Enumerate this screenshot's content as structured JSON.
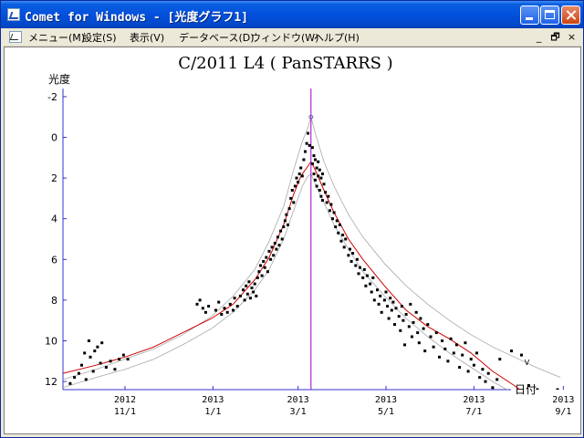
{
  "window": {
    "title": "Comet for Windows - [光度グラフ1]",
    "accent": "#0350dd"
  },
  "menu": {
    "items": [
      "メニュー(M)",
      "設定(S)",
      "表示(V)",
      "データベース(D)",
      "ウィンドウ(W)",
      "ヘルプ(H)"
    ],
    "mdi_buttons": [
      "_",
      "🗗",
      "×"
    ]
  },
  "chart_data": {
    "type": "scatter",
    "title": "C/2011 L4 ( PanSTARRS )",
    "ylabel": "光度",
    "xlabel": "日付",
    "y_inverted": true,
    "ylim": [
      -2.4,
      12.4
    ],
    "y_ticks": [
      -2,
      0,
      2,
      4,
      6,
      8,
      10,
      12
    ],
    "x_ticks": [
      {
        "year": "2012",
        "date": "11/1",
        "day": -120
      },
      {
        "year": "2013",
        "date": "1/1",
        "day": -59
      },
      {
        "year": "2013",
        "date": "3/1",
        "day": 0
      },
      {
        "year": "2013",
        "date": "5/1",
        "day": 61
      },
      {
        "year": "2013",
        "date": "7/1",
        "day": 122
      },
      {
        "year": "2013",
        "date": "9/1",
        "day": 184
      }
    ],
    "xlim": [
      -163,
      192
    ],
    "perihelion_day": 9,
    "peak_magnitude": -1.0,
    "v_label": "V",
    "v_label_pos": [
      157,
      11.2
    ],
    "series": [
      {
        "color": "#cc0000"
      },
      {
        "color": "#a8a8a8"
      },
      {
        "color": "#a8a8a8"
      },
      {
        "color": "#9900cc"
      }
    ],
    "curve_left": [
      [
        -163,
        11.6
      ],
      [
        -140,
        11.2
      ],
      [
        -120,
        10.8
      ],
      [
        -100,
        10.3
      ],
      [
        -80,
        9.6
      ],
      [
        -60,
        8.9
      ],
      [
        -45,
        8.2
      ],
      [
        -30,
        7.0
      ],
      [
        -20,
        5.9
      ],
      [
        -10,
        4.3
      ],
      [
        -3,
        2.8
      ],
      [
        2,
        1.9
      ],
      [
        6,
        1.5
      ],
      [
        8,
        1.3
      ],
      [
        9,
        1.2
      ]
    ],
    "curve_right": [
      [
        9,
        1.2
      ],
      [
        12,
        1.6
      ],
      [
        18,
        2.6
      ],
      [
        25,
        3.7
      ],
      [
        35,
        5.0
      ],
      [
        45,
        6.0
      ],
      [
        60,
        7.3
      ],
      [
        75,
        8.5
      ],
      [
        90,
        9.3
      ],
      [
        105,
        9.9
      ],
      [
        120,
        10.6
      ],
      [
        135,
        11.5
      ],
      [
        150,
        12.2
      ],
      [
        160,
        12.7
      ]
    ],
    "envelope_upper_left": [
      [
        -163,
        11.9
      ],
      [
        -140,
        11.4
      ],
      [
        -120,
        10.9
      ],
      [
        -100,
        10.4
      ],
      [
        -80,
        9.7
      ],
      [
        -60,
        8.8
      ],
      [
        -45,
        7.8
      ],
      [
        -30,
        6.5
      ],
      [
        -20,
        5.1
      ],
      [
        -10,
        3.4
      ],
      [
        -3,
        1.6
      ],
      [
        3,
        0.2
      ],
      [
        7,
        -0.5
      ],
      [
        9,
        -1.0
      ]
    ],
    "envelope_upper_right": [
      [
        9,
        -1.0
      ],
      [
        12,
        -0.2
      ],
      [
        18,
        1.2
      ],
      [
        25,
        2.4
      ],
      [
        35,
        3.8
      ],
      [
        45,
        4.9
      ],
      [
        60,
        6.2
      ],
      [
        75,
        7.3
      ],
      [
        90,
        8.2
      ],
      [
        105,
        9.0
      ],
      [
        120,
        9.7
      ],
      [
        135,
        10.3
      ],
      [
        150,
        10.8
      ],
      [
        165,
        11.3
      ],
      [
        182,
        11.8
      ]
    ],
    "envelope_lower_left": [
      [
        -163,
        12.3
      ],
      [
        -140,
        11.8
      ],
      [
        -120,
        11.4
      ],
      [
        -100,
        10.9
      ],
      [
        -80,
        10.2
      ],
      [
        -60,
        9.4
      ],
      [
        -45,
        8.6
      ],
      [
        -30,
        7.5
      ],
      [
        -20,
        6.5
      ],
      [
        -10,
        5.0
      ],
      [
        -3,
        3.6
      ],
      [
        3,
        2.4
      ],
      [
        7,
        1.9
      ],
      [
        9,
        1.8
      ]
    ],
    "envelope_lower_right": [
      [
        9,
        1.8
      ],
      [
        12,
        2.3
      ],
      [
        18,
        3.2
      ],
      [
        25,
        4.3
      ],
      [
        35,
        5.5
      ],
      [
        45,
        6.6
      ],
      [
        60,
        7.8
      ],
      [
        75,
        8.9
      ],
      [
        90,
        9.8
      ],
      [
        105,
        10.6
      ],
      [
        120,
        11.3
      ],
      [
        135,
        12.0
      ],
      [
        150,
        12.6
      ]
    ],
    "points": [
      [
        -158,
        12.1
      ],
      [
        -155,
        11.8
      ],
      [
        -152,
        11.6
      ],
      [
        -150,
        11.2
      ],
      [
        -148,
        10.6
      ],
      [
        -147,
        11.9
      ],
      [
        -145,
        10.0
      ],
      [
        -144,
        10.8
      ],
      [
        -142,
        11.5
      ],
      [
        -141,
        10.5
      ],
      [
        -139,
        10.3
      ],
      [
        -137,
        11.1
      ],
      [
        -136,
        10.1
      ],
      [
        -133,
        11.3
      ],
      [
        -130,
        11.0
      ],
      [
        -127,
        11.4
      ],
      [
        -124,
        10.9
      ],
      [
        -121,
        10.7
      ],
      [
        -118,
        10.9
      ],
      [
        -70,
        8.2
      ],
      [
        -68,
        8.0
      ],
      [
        -66,
        8.4
      ],
      [
        -64,
        8.6
      ],
      [
        -62,
        8.3
      ],
      [
        -57,
        8.5
      ],
      [
        -55,
        8.1
      ],
      [
        -53,
        8.7
      ],
      [
        -51,
        8.4
      ],
      [
        -49,
        8.6
      ],
      [
        -47,
        8.2
      ],
      [
        -45,
        8.5
      ],
      [
        -44,
        7.9
      ],
      [
        -42,
        8.3
      ],
      [
        -40,
        7.8
      ],
      [
        -38,
        7.5
      ],
      [
        -37,
        8.0
      ],
      [
        -36,
        7.3
      ],
      [
        -35,
        7.7
      ],
      [
        -34,
        7.1
      ],
      [
        -33,
        7.9
      ],
      [
        -32,
        7.4
      ],
      [
        -31,
        7.6
      ],
      [
        -30,
        7.2
      ],
      [
        -29,
        7.8
      ],
      [
        -28,
        6.9
      ],
      [
        -27,
        6.6
      ],
      [
        -26,
        6.3
      ],
      [
        -25,
        6.8
      ],
      [
        -24,
        6.1
      ],
      [
        -23,
        6.4
      ],
      [
        -22,
        5.9
      ],
      [
        -21,
        6.6
      ],
      [
        -20,
        5.6
      ],
      [
        -19,
        6.0
      ],
      [
        -18,
        5.4
      ],
      [
        -17,
        5.8
      ],
      [
        -16,
        5.2
      ],
      [
        -15,
        5.5
      ],
      [
        -14,
        4.9
      ],
      [
        -13,
        5.3
      ],
      [
        -12,
        4.6
      ],
      [
        -11,
        5.0
      ],
      [
        -10,
        4.4
      ],
      [
        -9,
        4.1
      ],
      [
        -8,
        3.8
      ],
      [
        -7,
        4.3
      ],
      [
        -6,
        3.5
      ],
      [
        -5,
        3.0
      ],
      [
        -4,
        2.6
      ],
      [
        -3,
        3.2
      ],
      [
        -2,
        2.4
      ],
      [
        -1,
        2.0
      ],
      [
        0,
        2.2
      ],
      [
        1,
        1.8
      ],
      [
        2,
        1.5
      ],
      [
        3,
        1.9
      ],
      [
        4,
        1.1
      ],
      [
        5,
        0.7
      ],
      [
        6,
        0.3
      ],
      [
        7,
        -0.2
      ],
      [
        8,
        0.4
      ],
      [
        10,
        0.5
      ],
      [
        10,
        1.3
      ],
      [
        11,
        0.9
      ],
      [
        11,
        1.8
      ],
      [
        12,
        1.1
      ],
      [
        12,
        2.1
      ],
      [
        13,
        1.5
      ],
      [
        13,
        2.4
      ],
      [
        14,
        1.2
      ],
      [
        14,
        1.9
      ],
      [
        15,
        1.6
      ],
      [
        15,
        2.6
      ],
      [
        16,
        2.0
      ],
      [
        16,
        2.9
      ],
      [
        17,
        1.8
      ],
      [
        17,
        3.1
      ],
      [
        18,
        2.3
      ],
      [
        19,
        2.7
      ],
      [
        20,
        3.2
      ],
      [
        21,
        2.9
      ],
      [
        22,
        3.6
      ],
      [
        23,
        3.3
      ],
      [
        24,
        4.0
      ],
      [
        25,
        3.7
      ],
      [
        26,
        4.4
      ],
      [
        27,
        4.1
      ],
      [
        28,
        4.7
      ],
      [
        29,
        4.3
      ],
      [
        30,
        5.1
      ],
      [
        31,
        4.8
      ],
      [
        32,
        5.4
      ],
      [
        33,
        5.0
      ],
      [
        35,
        5.8
      ],
      [
        36,
        5.5
      ],
      [
        37,
        6.1
      ],
      [
        38,
        5.7
      ],
      [
        40,
        6.3
      ],
      [
        41,
        6.0
      ],
      [
        42,
        6.7
      ],
      [
        43,
        6.4
      ],
      [
        45,
        6.9
      ],
      [
        46,
        6.5
      ],
      [
        47,
        7.3
      ],
      [
        48,
        6.8
      ],
      [
        50,
        7.2
      ],
      [
        51,
        7.6
      ],
      [
        52,
        6.9
      ],
      [
        53,
        8.0
      ],
      [
        55,
        7.5
      ],
      [
        56,
        8.2
      ],
      [
        57,
        7.8
      ],
      [
        58,
        8.6
      ],
      [
        60,
        8.0
      ],
      [
        61,
        7.6
      ],
      [
        62,
        8.3
      ],
      [
        63,
        8.9
      ],
      [
        64,
        7.9
      ],
      [
        65,
        8.5
      ],
      [
        66,
        8.1
      ],
      [
        67,
        9.2
      ],
      [
        68,
        8.4
      ],
      [
        70,
        8.8
      ],
      [
        71,
        9.5
      ],
      [
        72,
        8.3
      ],
      [
        73,
        9.0
      ],
      [
        74,
        10.2
      ],
      [
        75,
        8.7
      ],
      [
        77,
        9.3
      ],
      [
        78,
        8.2
      ],
      [
        79,
        9.8
      ],
      [
        80,
        9.1
      ],
      [
        82,
        8.6
      ],
      [
        83,
        9.6
      ],
      [
        84,
        10.1
      ],
      [
        85,
        8.9
      ],
      [
        87,
        9.4
      ],
      [
        88,
        10.5
      ],
      [
        90,
        9.2
      ],
      [
        92,
        9.8
      ],
      [
        94,
        10.3
      ],
      [
        96,
        9.6
      ],
      [
        98,
        10.8
      ],
      [
        100,
        10.0
      ],
      [
        102,
        10.4
      ],
      [
        104,
        11.0
      ],
      [
        106,
        9.9
      ],
      [
        108,
        10.6
      ],
      [
        110,
        10.2
      ],
      [
        112,
        11.3
      ],
      [
        114,
        10.7
      ],
      [
        116,
        10.1
      ],
      [
        118,
        11.5
      ],
      [
        120,
        10.9
      ],
      [
        122,
        11.2
      ],
      [
        124,
        10.6
      ],
      [
        126,
        11.8
      ],
      [
        128,
        11.4
      ],
      [
        130,
        12.0
      ],
      [
        132,
        11.6
      ],
      [
        135,
        12.3
      ],
      [
        138,
        11.9
      ],
      [
        140,
        10.9
      ],
      [
        148,
        10.5
      ],
      [
        155,
        10.7
      ],
      [
        160,
        12.2
      ],
      [
        166,
        12.4
      ],
      [
        180,
        12.4
      ]
    ]
  }
}
